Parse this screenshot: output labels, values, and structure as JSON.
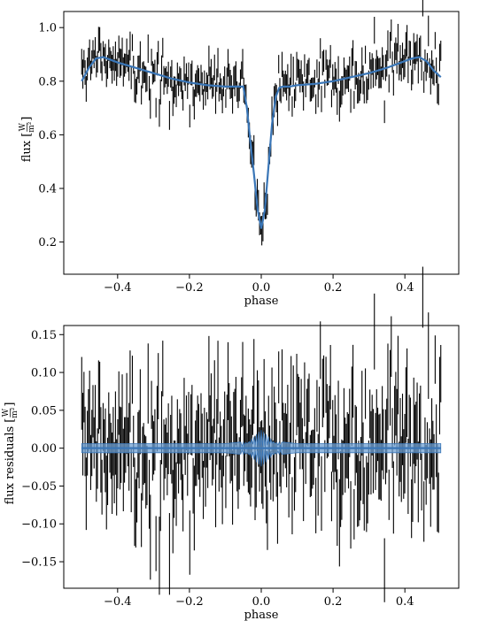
{
  "figure": {
    "colors": {
      "data": "#000000",
      "model": "#3a76b7",
      "band": "#6d9fd1",
      "frame": "#000000"
    }
  },
  "chart_data": [
    {
      "type": "line",
      "id": "flux",
      "title": "",
      "xlabel": "phase",
      "ylabel": "flux [W/m²]",
      "ylabel_base": "flux [",
      "ylabel_unit_num": "W",
      "ylabel_unit_den": "m²",
      "ylabel_close": "]",
      "xlim": [
        -0.55,
        0.55
      ],
      "ylim": [
        0.08,
        1.06
      ],
      "xticks": [
        -0.4,
        -0.2,
        0.0,
        0.2,
        0.4
      ],
      "xtick_labels": [
        "−0.4",
        "−0.2",
        "0.0",
        "0.2",
        "0.4"
      ],
      "yticks": [
        0.2,
        0.4,
        0.6,
        0.8,
        1.0
      ],
      "ytick_labels": [
        "0.2",
        "0.4",
        "0.6",
        "0.8",
        "1.0"
      ],
      "grid": false,
      "series": [
        {
          "kind": "model",
          "x": [
            -0.5,
            -0.48,
            -0.46,
            -0.44,
            -0.42,
            -0.4,
            -0.35,
            -0.3,
            -0.25,
            -0.2,
            -0.15,
            -0.1,
            -0.08,
            -0.06,
            -0.05,
            -0.04,
            -0.03,
            -0.02,
            -0.01,
            0.0,
            0.01,
            0.02,
            0.03,
            0.04,
            0.05,
            0.06,
            0.08,
            0.1,
            0.15,
            0.2,
            0.25,
            0.3,
            0.35,
            0.4,
            0.42,
            0.44,
            0.46,
            0.48,
            0.5
          ],
          "y": [
            0.8,
            0.85,
            0.885,
            0.89,
            0.88,
            0.87,
            0.85,
            0.83,
            0.81,
            0.795,
            0.785,
            0.78,
            0.78,
            0.78,
            0.78,
            0.7,
            0.57,
            0.45,
            0.32,
            0.25,
            0.32,
            0.48,
            0.64,
            0.74,
            0.775,
            0.78,
            0.78,
            0.785,
            0.79,
            0.8,
            0.815,
            0.83,
            0.85,
            0.875,
            0.885,
            0.89,
            0.875,
            0.84,
            0.815
          ]
        },
        {
          "kind": "data",
          "n": 320,
          "x_range": [
            -0.5,
            0.5
          ],
          "halfwidth": 0.045,
          "scatter": 0.05,
          "seed": 7
        }
      ]
    },
    {
      "type": "line",
      "id": "residuals",
      "title": "",
      "xlabel": "phase",
      "ylabel": "flux residuals [W/m²]",
      "ylabel_base": "flux residuals [",
      "ylabel_unit_num": "W",
      "ylabel_unit_den": "m²",
      "ylabel_close": "]",
      "xlim": [
        -0.55,
        0.55
      ],
      "ylim": [
        -0.185,
        0.162
      ],
      "xticks": [
        -0.4,
        -0.2,
        0.0,
        0.2,
        0.4
      ],
      "xtick_labels": [
        "−0.4",
        "−0.2",
        "0.0",
        "0.2",
        "0.4"
      ],
      "yticks": [
        -0.15,
        -0.1,
        -0.05,
        0.0,
        0.05,
        0.1,
        0.15
      ],
      "ytick_labels": [
        "−0.15",
        "−0.10",
        "−0.05",
        "0.00",
        "0.05",
        "0.10",
        "0.15"
      ],
      "grid": false,
      "series": [
        {
          "kind": "model-band",
          "x": [
            -0.5,
            -0.1,
            -0.06,
            -0.04,
            -0.02,
            0.0,
            0.02,
            0.04,
            0.06,
            0.1,
            0.5
          ],
          "halfwidth": [
            0.006,
            0.006,
            0.008,
            0.012,
            0.018,
            0.024,
            0.018,
            0.012,
            0.008,
            0.006,
            0.006
          ]
        },
        {
          "kind": "data",
          "n": 320,
          "x_range": [
            -0.5,
            0.5
          ],
          "halfwidth": 0.045,
          "scatter": 0.05,
          "seed": 7
        }
      ]
    }
  ]
}
